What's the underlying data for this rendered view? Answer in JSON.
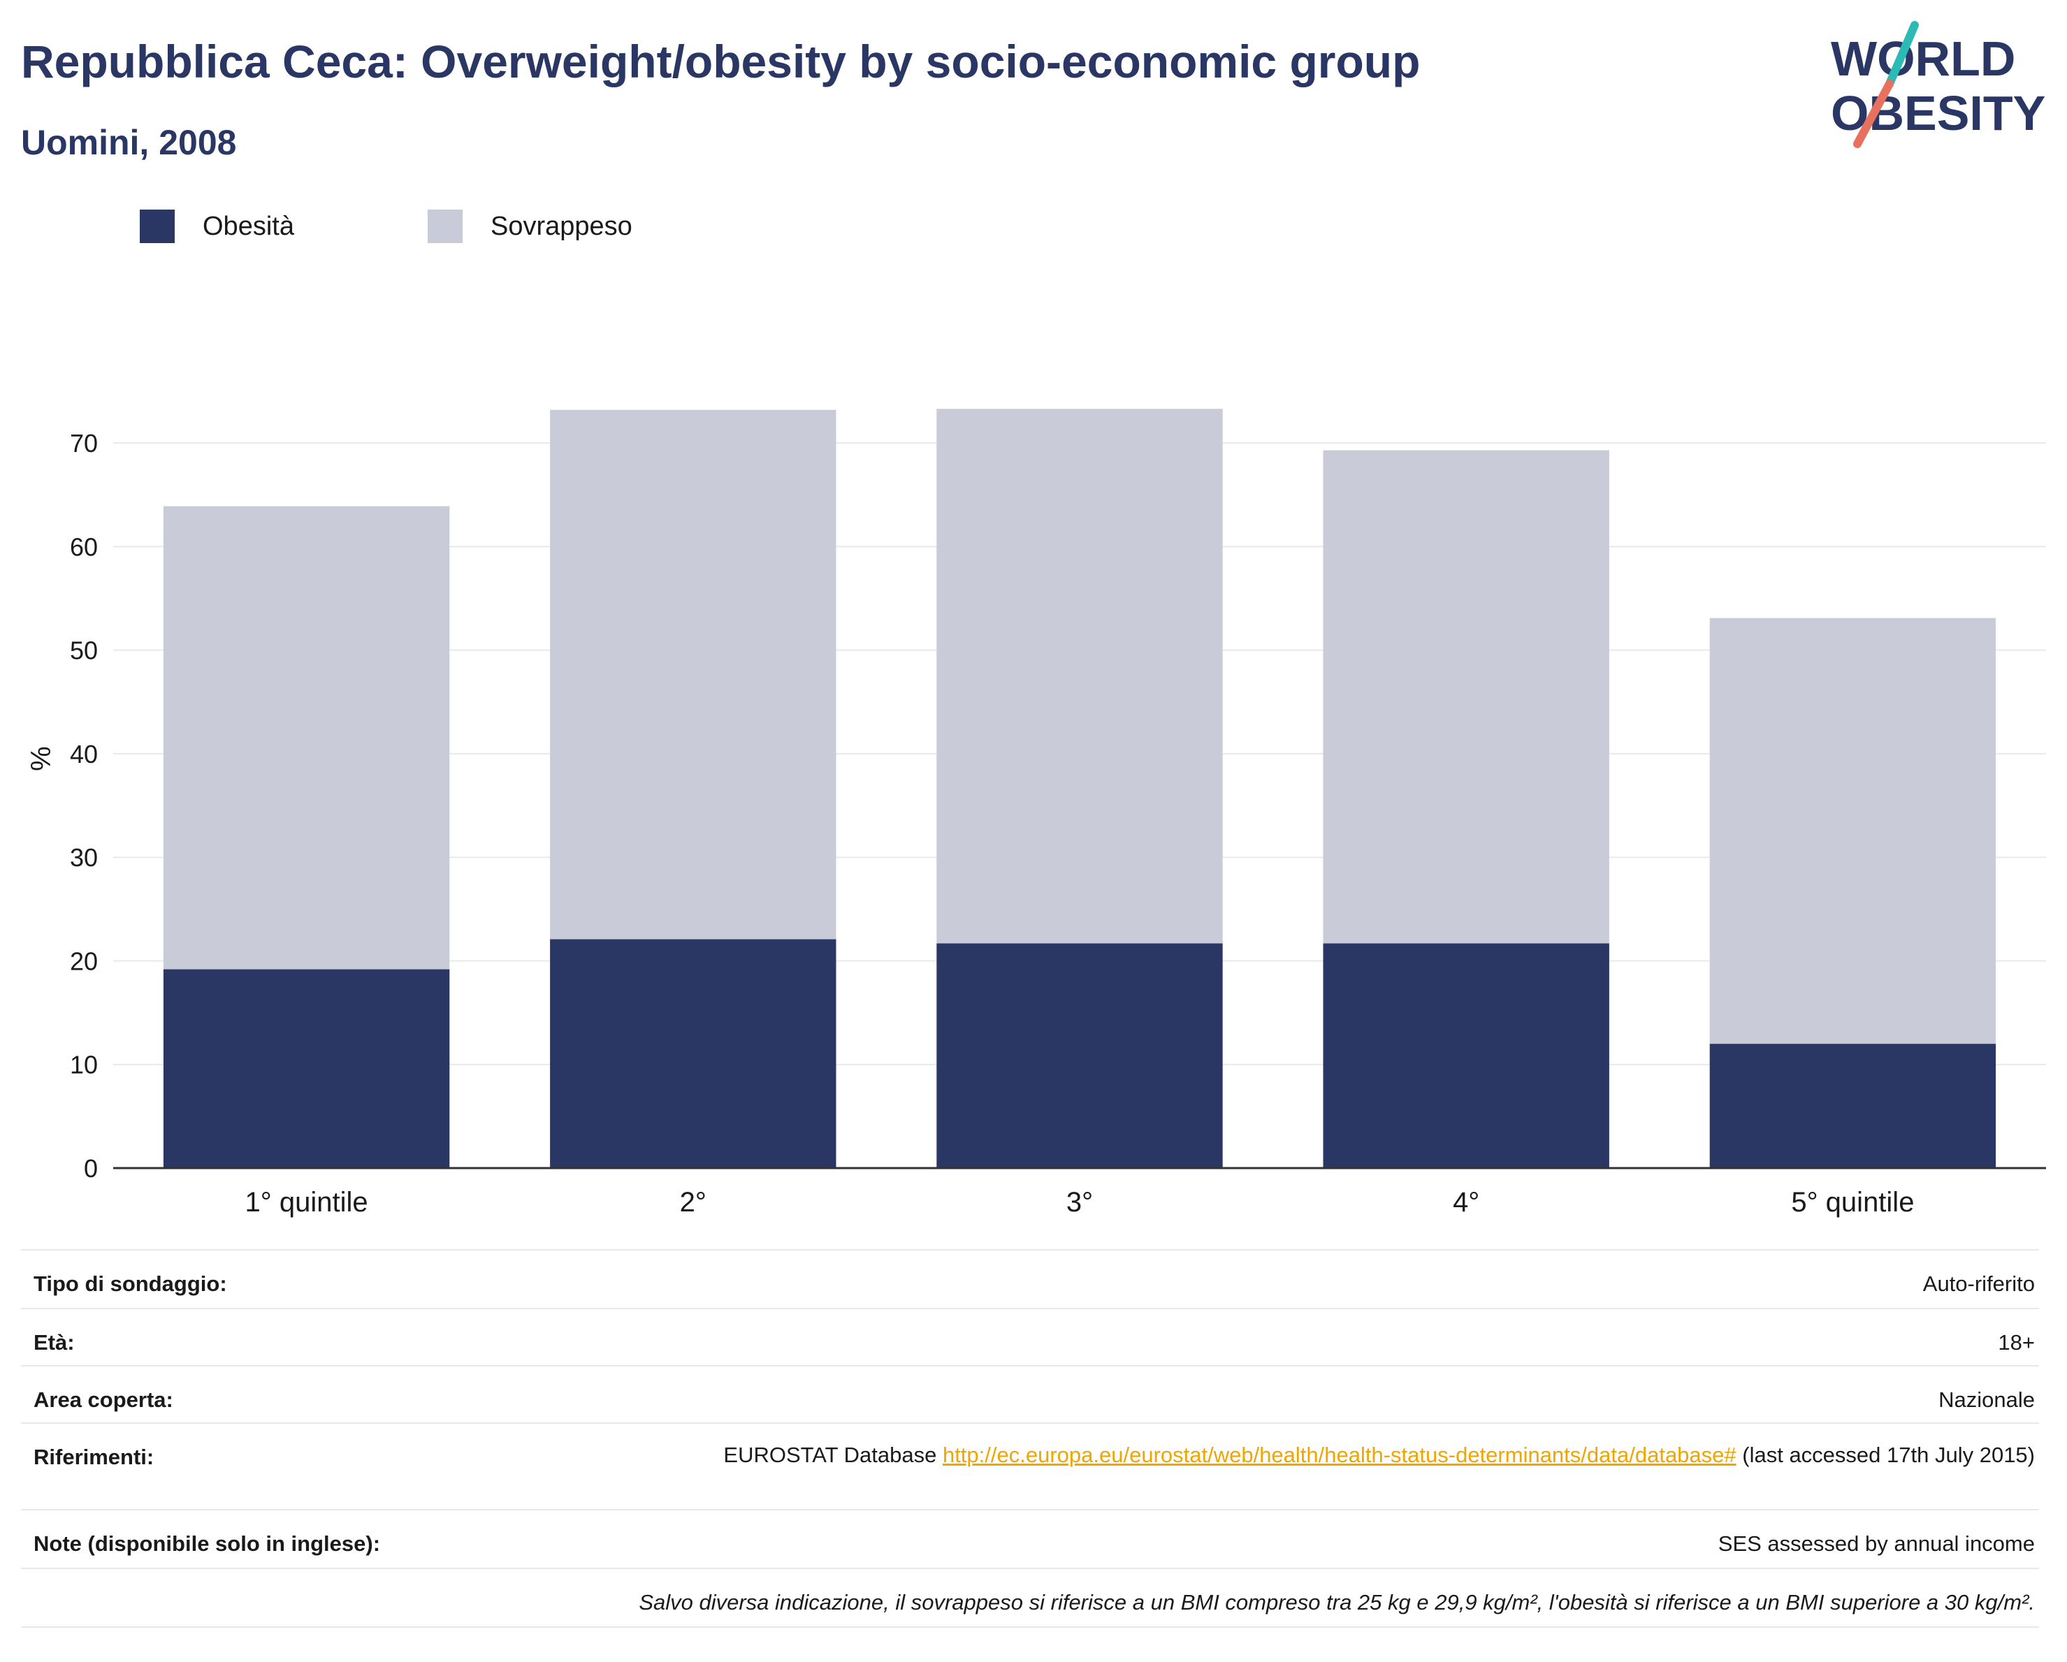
{
  "header": {
    "title": "Repubblica Ceca: Overweight/obesity by socio-economic group",
    "subtitle": "Uomini, 2008"
  },
  "logo": {
    "line1": "WORLD",
    "line2": "OBESITY",
    "accent_teal": "#2bbbb4",
    "accent_red": "#e8705f",
    "text_color": "#2a3663"
  },
  "legend": [
    {
      "label": "Obesità",
      "color": "#2a3663"
    },
    {
      "label": "Sovrappeso",
      "color": "#c9ccd8"
    }
  ],
  "chart_data": {
    "type": "bar",
    "stacked": true,
    "categories": [
      "1° quintile",
      "2°",
      "3°",
      "4°",
      "5° quintile"
    ],
    "series": [
      {
        "name": "Obesità",
        "color": "#2a3663",
        "values": [
          19.2,
          22.1,
          21.7,
          21.7,
          12.0
        ]
      },
      {
        "name": "Sovrappeso",
        "color": "#c9ccd8",
        "values": [
          44.7,
          51.1,
          51.6,
          47.6,
          41.1
        ]
      }
    ],
    "ylabel": "%",
    "ylim": [
      0,
      75
    ],
    "yticks": [
      0,
      10,
      20,
      30,
      40,
      50,
      60,
      70
    ],
    "grid": true,
    "legend_position": "top-left"
  },
  "info": {
    "survey_type": {
      "label": "Tipo di sondaggio:",
      "value": "Auto-riferito"
    },
    "age": {
      "label": "Età:",
      "value": "18+"
    },
    "area": {
      "label": "Area coperta:",
      "value": "Nazionale"
    },
    "references": {
      "label": "Riferimenti:",
      "prefix": "EUROSTAT Database ",
      "link": "http://ec.europa.eu/eurostat/web/health/health-status-determinants/data/database#",
      "suffix": " (last accessed 17th July 2015)"
    },
    "notes": {
      "label": "Note (disponibile solo in inglese):",
      "value": "SES assessed by annual income"
    },
    "footnote": "Salvo diversa indicazione, il sovrappeso si riferisce a un BMI compreso tra 25 kg e 29,9 kg/m², l'obesità si riferisce a un BMI superiore a 30 kg/m²."
  }
}
